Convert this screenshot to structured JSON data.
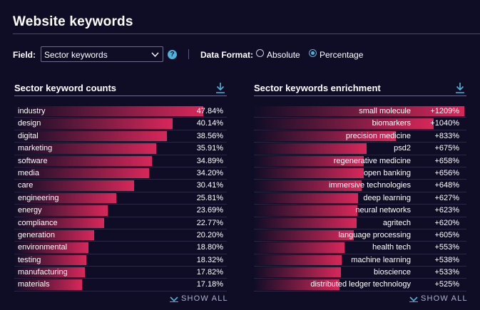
{
  "page": {
    "title": "Website keywords"
  },
  "filters": {
    "field_label": "Field:",
    "field_value": "Sector keywords",
    "help_glyph": "?",
    "format_label": "Data Format:",
    "option_absolute": "Absolute",
    "option_percentage": "Percentage",
    "selected": "Percentage"
  },
  "left_panel": {
    "title": "Sector keyword counts",
    "show_all": "SHOW ALL",
    "rows": [
      {
        "label": "industry",
        "value": "47.84%",
        "pct": 47.84
      },
      {
        "label": "design",
        "value": "40.14%",
        "pct": 40.14
      },
      {
        "label": "digital",
        "value": "38.56%",
        "pct": 38.56
      },
      {
        "label": "marketing",
        "value": "35.91%",
        "pct": 35.91
      },
      {
        "label": "software",
        "value": "34.89%",
        "pct": 34.89
      },
      {
        "label": "media",
        "value": "34.20%",
        "pct": 34.2
      },
      {
        "label": "care",
        "value": "30.41%",
        "pct": 30.41
      },
      {
        "label": "engineering",
        "value": "25.81%",
        "pct": 25.81
      },
      {
        "label": "energy",
        "value": "23.69%",
        "pct": 23.69
      },
      {
        "label": "compliance",
        "value": "22.77%",
        "pct": 22.77
      },
      {
        "label": "generation",
        "value": "20.20%",
        "pct": 20.2
      },
      {
        "label": "environmental",
        "value": "18.80%",
        "pct": 18.8
      },
      {
        "label": "testing",
        "value": "18.32%",
        "pct": 18.32
      },
      {
        "label": "manufacturing",
        "value": "17.82%",
        "pct": 17.82
      },
      {
        "label": "materials",
        "value": "17.18%",
        "pct": 17.18
      }
    ]
  },
  "right_panel": {
    "title": "Sector keywords enrichment",
    "show_all": "SHOW ALL",
    "rows": [
      {
        "label": "small molecule",
        "value": "+1209%",
        "pct": 1209
      },
      {
        "label": "biomarkers",
        "value": "+1040%",
        "pct": 1040
      },
      {
        "label": "precision medicine",
        "value": "+833%",
        "pct": 833
      },
      {
        "label": "psd2",
        "value": "+675%",
        "pct": 675
      },
      {
        "label": "regenerative medicine",
        "value": "+658%",
        "pct": 658
      },
      {
        "label": "open banking",
        "value": "+656%",
        "pct": 656
      },
      {
        "label": "immersive technologies",
        "value": "+648%",
        "pct": 648
      },
      {
        "label": "deep learning",
        "value": "+627%",
        "pct": 627
      },
      {
        "label": "neural networks",
        "value": "+623%",
        "pct": 623
      },
      {
        "label": "agritech",
        "value": "+620%",
        "pct": 620
      },
      {
        "label": "language processing",
        "value": "+605%",
        "pct": 605
      },
      {
        "label": "health tech",
        "value": "+553%",
        "pct": 553
      },
      {
        "label": "machine learning",
        "value": "+538%",
        "pct": 538
      },
      {
        "label": "bioscience",
        "value": "+533%",
        "pct": 533
      },
      {
        "label": "distributed ledger technology",
        "value": "+525%",
        "pct": 525
      }
    ]
  },
  "colors": {
    "background": "#0f0d26",
    "bar": "#d8275a",
    "accent": "#4fb3d9"
  },
  "icons": {
    "download": "download-icon",
    "chevron": "chevron-down-icon",
    "help": "help-icon"
  }
}
